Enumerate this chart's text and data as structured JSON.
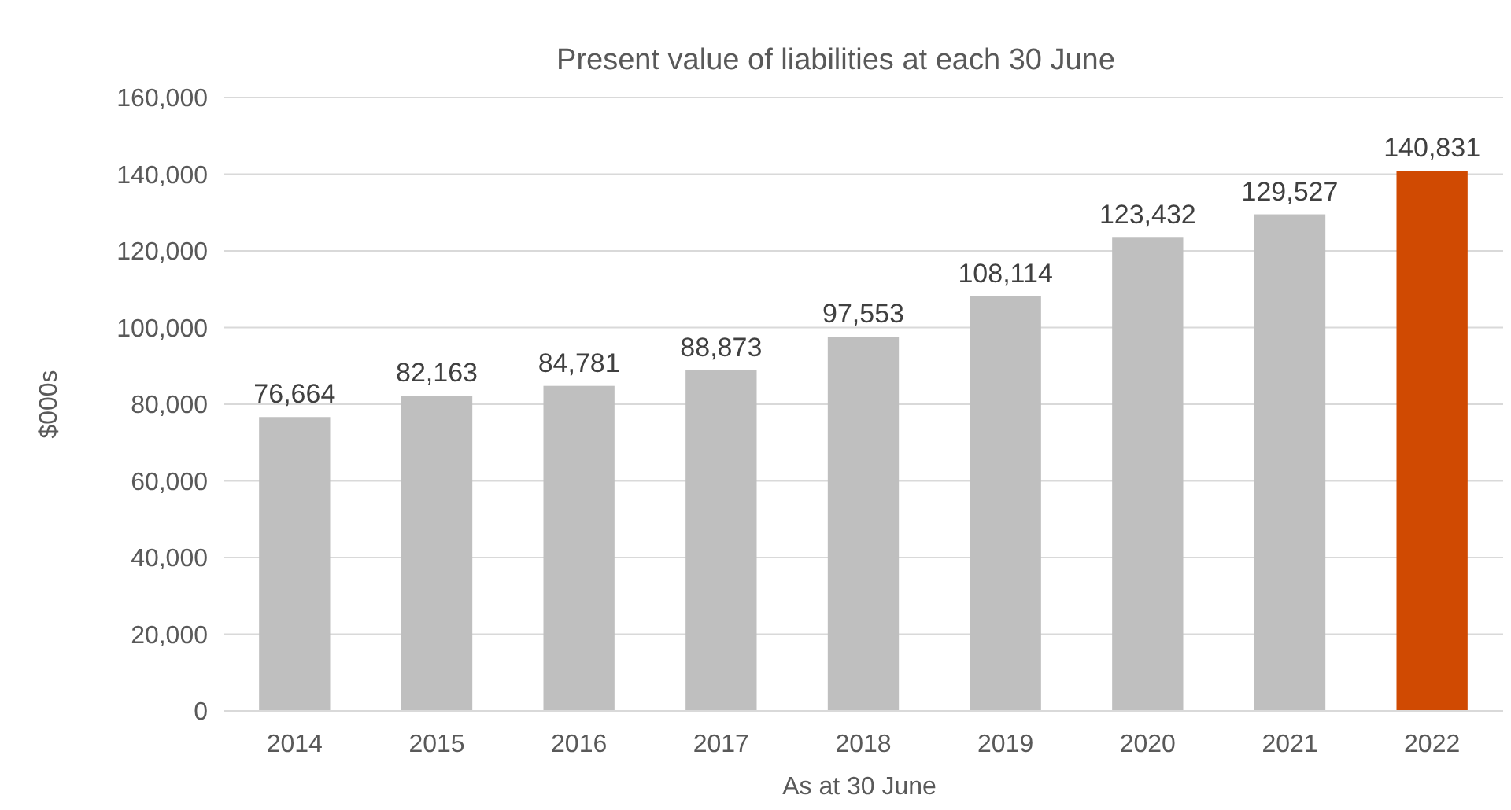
{
  "chart_data": {
    "type": "bar",
    "title": "Present value of liabilities at each 30 June",
    "xlabel": "As at 30 June",
    "ylabel": "$000s",
    "categories": [
      "2014",
      "2015",
      "2016",
      "2017",
      "2018",
      "2019",
      "2020",
      "2021",
      "2022"
    ],
    "values": [
      76664,
      82163,
      84781,
      88873,
      97553,
      108114,
      123432,
      129527,
      140831
    ],
    "value_labels": [
      "76,664",
      "82,163",
      "84,781",
      "88,873",
      "97,553",
      "108,114",
      "123,432",
      "129,527",
      "140,831"
    ],
    "colors": [
      "#bfbfbf",
      "#bfbfbf",
      "#bfbfbf",
      "#bfbfbf",
      "#bfbfbf",
      "#bfbfbf",
      "#bfbfbf",
      "#bfbfbf",
      "#d04a02"
    ],
    "ylim": [
      0,
      160000
    ],
    "yticks": [
      {
        "value": 0,
        "label": "0"
      },
      {
        "value": 20000,
        "label": "20,000"
      },
      {
        "value": 40000,
        "label": "40,000"
      },
      {
        "value": 60000,
        "label": "60,000"
      },
      {
        "value": 80000,
        "label": "80,000"
      },
      {
        "value": 100000,
        "label": "100,000"
      },
      {
        "value": 120000,
        "label": "120,000"
      },
      {
        "value": 140000,
        "label": "140,000"
      },
      {
        "value": 160000,
        "label": "160,000"
      }
    ],
    "grid": "y"
  }
}
